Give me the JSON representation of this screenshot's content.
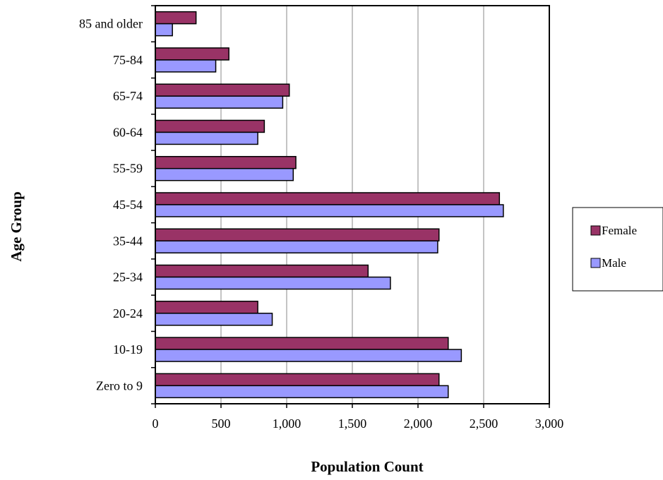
{
  "chart_data": {
    "type": "bar",
    "orientation": "horizontal",
    "title": "",
    "xlabel": "Population Count",
    "ylabel": "Age Group",
    "xlim": [
      0,
      3000
    ],
    "x_ticks": [
      0,
      500,
      1000,
      1500,
      2000,
      2500,
      3000
    ],
    "x_tick_labels": [
      "0",
      "500",
      "1,000",
      "1,500",
      "2,000",
      "2,500",
      "3,000"
    ],
    "grid": "vertical",
    "legend_position": "right",
    "categories": [
      "85 and older",
      "75-84",
      "65-74",
      "60-64",
      "55-59",
      "45-54",
      "35-44",
      "25-34",
      "20-24",
      "10-19",
      "Zero to 9"
    ],
    "series": [
      {
        "name": "Female",
        "color": "#993366",
        "values": [
          310,
          560,
          1020,
          830,
          1070,
          2620,
          2160,
          1620,
          780,
          2230,
          2160
        ]
      },
      {
        "name": "Male",
        "color": "#9999FF",
        "values": [
          130,
          460,
          970,
          780,
          1050,
          2650,
          2150,
          1790,
          890,
          2330,
          2230
        ]
      }
    ]
  }
}
